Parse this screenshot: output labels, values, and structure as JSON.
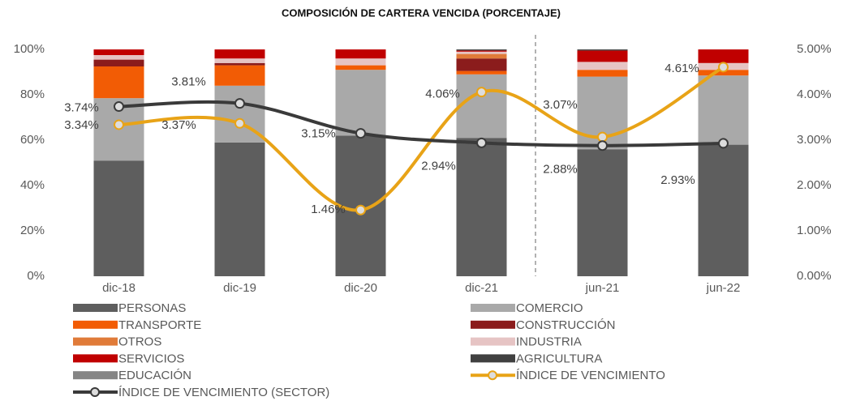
{
  "chart_data": {
    "type": "bar",
    "title": "COMPOSICIÓN DE CARTERA VENCIDA (PORCENTAJE)",
    "categories": [
      "dic-18",
      "dic-19",
      "dic-20",
      "dic-21",
      "jun-21",
      "jun-22"
    ],
    "stacked": true,
    "ylim": [
      0,
      100
    ],
    "yticks": [
      {
        "value": 0,
        "label": "0%"
      },
      {
        "value": 20,
        "label": "20%"
      },
      {
        "value": 40,
        "label": "40%"
      },
      {
        "value": 60,
        "label": "60%"
      },
      {
        "value": 80,
        "label": "80%"
      },
      {
        "value": 100,
        "label": "100%"
      }
    ],
    "y2lim": [
      0,
      5
    ],
    "y2ticks": [
      {
        "value": 0,
        "label": "0.00%"
      },
      {
        "value": 1,
        "label": "1.00%"
      },
      {
        "value": 2,
        "label": "2.00%"
      },
      {
        "value": 3,
        "label": "3.00%"
      },
      {
        "value": 4,
        "label": "4.00%"
      },
      {
        "value": 5,
        "label": "5.00%"
      }
    ],
    "series": [
      {
        "name": "PERSONAS",
        "color": "#5e5e5e",
        "values": [
          51,
          59,
          62,
          61,
          56,
          58
        ]
      },
      {
        "name": "COMERCIO",
        "color": "#a9a9a9",
        "values": [
          27.5,
          25,
          29,
          28,
          32,
          30.5
        ]
      },
      {
        "name": "TRANSPORTE",
        "color": "#f25c05",
        "values": [
          14,
          9,
          2,
          1.5,
          3,
          2.5
        ]
      },
      {
        "name": "CONSTRUCCIÓN",
        "color": "#8b1c1c",
        "values": [
          3,
          1,
          0,
          5.5,
          0,
          0
        ]
      },
      {
        "name": "OTROS",
        "color": "#e07b39",
        "values": [
          0,
          0,
          0,
          2,
          0,
          0
        ]
      },
      {
        "name": "INDUSTRIA",
        "color": "#e6c4c4",
        "values": [
          2,
          2,
          3,
          1,
          3.5,
          3
        ]
      },
      {
        "name": "SERVICIOS",
        "color": "#c00000",
        "values": [
          2.5,
          4,
          4,
          0.5,
          5,
          6
        ]
      },
      {
        "name": "AGRICULTURA",
        "color": "#404040",
        "values": [
          0,
          0,
          0,
          0.5,
          0.5,
          0
        ]
      },
      {
        "name": "EDUCACIÓN",
        "color": "#858585",
        "values": [
          0,
          0,
          0,
          0,
          0,
          0
        ]
      },
      {
        "name": "ÍNDICE DE VENCIMIENTO",
        "type": "line",
        "axis": "y2",
        "color": "#e8a317",
        "values": [
          3.34,
          3.37,
          1.46,
          4.06,
          3.07,
          4.61
        ],
        "value_labels": [
          "3.34%",
          "3.37%",
          "1.46%",
          "4.06%",
          "3.07%",
          "4.61%"
        ]
      },
      {
        "name": "ÍNDICE DE VENCIMIENTO (SECTOR)",
        "type": "line",
        "axis": "y2",
        "color": "#3a3a3a",
        "values": [
          3.74,
          3.81,
          3.15,
          2.94,
          2.88,
          2.93
        ],
        "value_labels": [
          "3.74%",
          "3.81%",
          "3.15%",
          "2.94%",
          "2.88%",
          "2.93%"
        ]
      }
    ]
  }
}
